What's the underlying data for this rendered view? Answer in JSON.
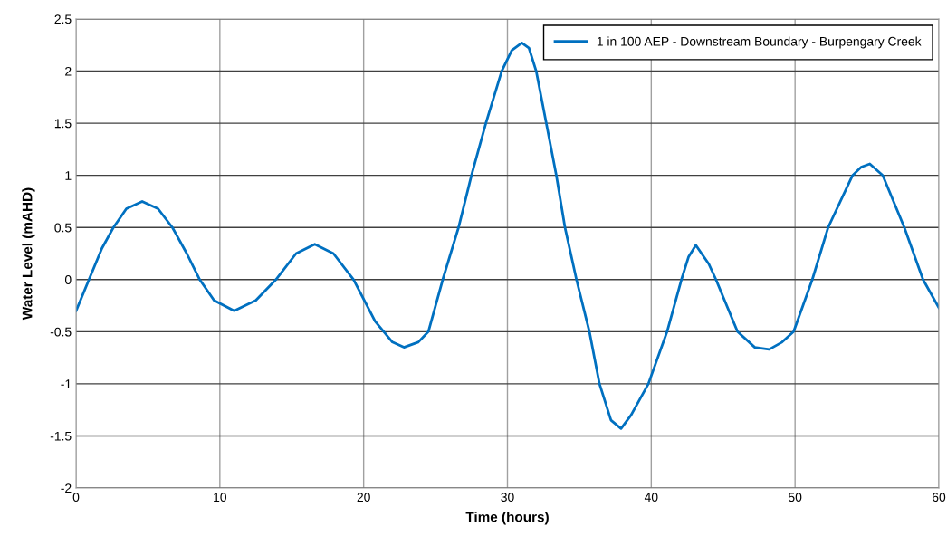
{
  "chart_data": {
    "type": "line",
    "xlabel": "Time (hours)",
    "ylabel": "Water Level (mAHD)",
    "x": [
      0,
      0.9,
      1.8,
      2.6,
      3.5,
      4.6,
      5.7,
      6.7,
      7.7,
      8.6,
      9.6,
      11,
      12.5,
      13.9,
      15.3,
      16.6,
      17.9,
      19.3,
      20.8,
      22,
      22.8,
      23.8,
      24.5,
      25.5,
      26.6,
      27.5,
      28.5,
      29.6,
      30.3,
      31,
      31.5,
      32,
      32.7,
      33.4,
      34,
      34.8,
      35.7,
      36.4,
      37.2,
      37.9,
      38.6,
      39.8,
      41.1,
      42.1,
      42.6,
      43.1,
      44,
      44.5,
      46,
      47.2,
      48.2,
      49.1,
      49.9,
      51.2,
      52.3,
      54,
      54.6,
      55.2,
      56.1,
      57.6,
      58.9,
      60
    ],
    "series": [
      {
        "name": "1 in 100 AEP - Downstream Boundary - Burpengary Creek",
        "color": "#0070c0",
        "values": [
          -0.3,
          0,
          0.3,
          0.5,
          0.68,
          0.75,
          0.68,
          0.5,
          0.25,
          0,
          -0.2,
          -0.3,
          -0.2,
          0,
          0.25,
          0.34,
          0.25,
          0,
          -0.4,
          -0.6,
          -0.65,
          -0.6,
          -0.5,
          0,
          0.5,
          1.0,
          1.5,
          2.0,
          2.2,
          2.27,
          2.22,
          2.0,
          1.5,
          1.0,
          0.5,
          0,
          -0.5,
          -1.0,
          -1.35,
          -1.43,
          -1.3,
          -1.0,
          -0.5,
          0,
          0.22,
          0.33,
          0.15,
          0,
          -0.5,
          -0.65,
          -0.67,
          -0.6,
          -0.5,
          0,
          0.5,
          1.0,
          1.08,
          1.11,
          1.0,
          0.5,
          0,
          -0.27
        ]
      }
    ],
    "xlim": [
      0,
      60
    ],
    "xticks": [
      0,
      10,
      20,
      30,
      40,
      50,
      60
    ],
    "ylim": [
      -2,
      2.5
    ],
    "yticks": [
      -2,
      -1.5,
      -1,
      -0.5,
      0,
      0.5,
      1,
      1.5,
      2,
      2.5
    ],
    "grid": true,
    "legend": "top right",
    "marker": "none",
    "line_style": "solid"
  }
}
